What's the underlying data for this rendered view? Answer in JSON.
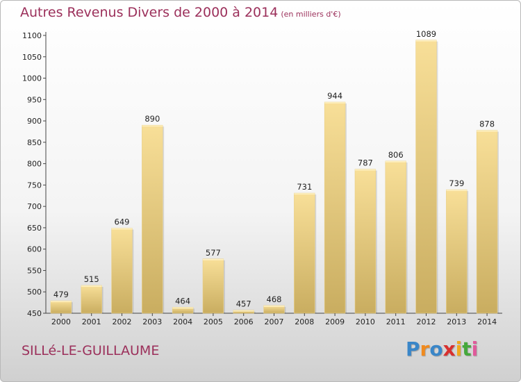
{
  "title": "Autres Revenus Divers de 2000 à 2014",
  "unit_note": "(en milliers d'€)",
  "place_name": "SILLé-LE-GUILLAUME",
  "logo": {
    "letters": [
      "P",
      "r",
      "o",
      "x",
      "i",
      "t",
      "i"
    ],
    "colors": [
      "#3a86c8",
      "#f08a1e",
      "#3a86c8",
      "#d8302e",
      "#f0a81e",
      "#45a83c",
      "#e05a9a"
    ]
  },
  "colors": {
    "title": "#9b2f5a",
    "bar_light": "#f8df98",
    "bar_dark": "#c9ad60"
  },
  "chart_data": {
    "type": "bar",
    "title": "Autres Revenus Divers de 2000 à 2014",
    "subtitle": "(en milliers d'€)",
    "xlabel": "",
    "ylabel": "",
    "categories": [
      "2000",
      "2001",
      "2002",
      "2003",
      "2004",
      "2005",
      "2006",
      "2007",
      "2008",
      "2009",
      "2010",
      "2011",
      "2012",
      "2013",
      "2014"
    ],
    "values": [
      479,
      515,
      649,
      890,
      464,
      577,
      457,
      468,
      731,
      944,
      787,
      806,
      1089,
      739,
      878
    ],
    "ylim": [
      450,
      1100
    ],
    "yticks": [
      450,
      500,
      550,
      600,
      650,
      700,
      750,
      800,
      850,
      900,
      950,
      1000,
      1050,
      1100
    ],
    "grid": false,
    "legend": "none"
  }
}
